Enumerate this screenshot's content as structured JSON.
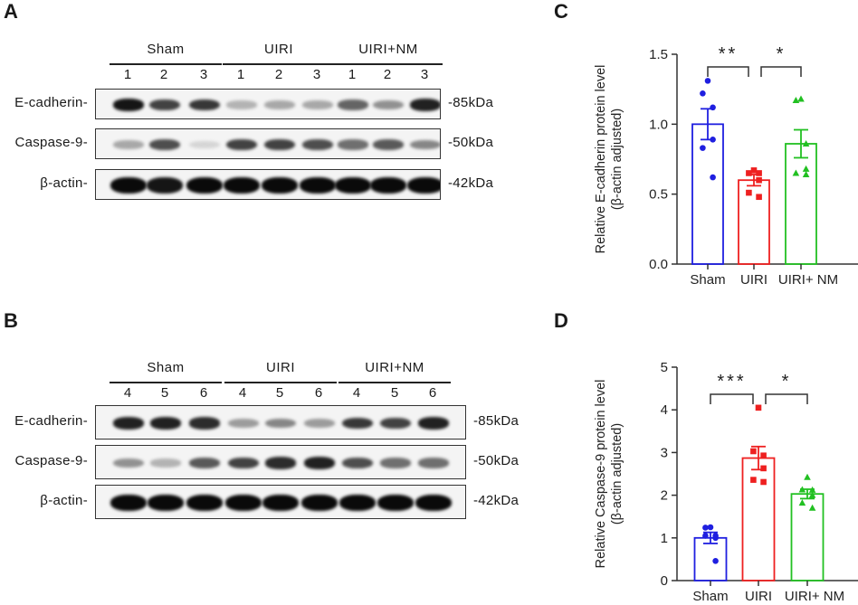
{
  "figure": {
    "panels": {
      "A": {
        "letter": "A",
        "groups": [
          {
            "label": "Sham",
            "lanes": [
              "1",
              "2",
              "3"
            ]
          },
          {
            "label": "UIRI",
            "lanes": [
              "1",
              "2",
              "3"
            ]
          },
          {
            "label": "UIRI+NM",
            "lanes": [
              "1",
              "2",
              "3"
            ]
          }
        ],
        "rows": [
          {
            "label": "E-cadherin-",
            "mw": "-85kDa",
            "intensity": [
              0.95,
              0.75,
              0.8,
              0.25,
              0.3,
              0.3,
              0.6,
              0.4,
              0.9
            ]
          },
          {
            "label": "Caspase-9-",
            "mw": "-50kDa",
            "intensity": [
              0.3,
              0.7,
              0.1,
              0.75,
              0.75,
              0.7,
              0.55,
              0.65,
              0.45
            ]
          },
          {
            "label": "β-actin-",
            "mw": "-42kDa",
            "intensity": [
              1,
              0.95,
              1,
              1,
              1,
              1,
              1,
              1,
              1
            ]
          }
        ]
      },
      "B": {
        "letter": "B",
        "groups": [
          {
            "label": "Sham",
            "lanes": [
              "4",
              "5",
              "6"
            ]
          },
          {
            "label": "UIRI",
            "lanes": [
              "4",
              "5",
              "6"
            ]
          },
          {
            "label": "UIRI+NM",
            "lanes": [
              "4",
              "5",
              "6"
            ]
          }
        ],
        "rows": [
          {
            "label": "E-cadherin-",
            "mw": "-85kDa",
            "intensity": [
              0.9,
              0.9,
              0.85,
              0.35,
              0.45,
              0.35,
              0.8,
              0.75,
              0.9
            ]
          },
          {
            "label": "Caspase-9-",
            "mw": "-50kDa",
            "intensity": [
              0.4,
              0.25,
              0.65,
              0.75,
              0.85,
              0.9,
              0.7,
              0.55,
              0.55
            ]
          },
          {
            "label": "β-actin-",
            "mw": "-42kDa",
            "intensity": [
              1,
              1,
              1,
              1,
              1,
              1,
              1,
              1,
              1
            ]
          }
        ]
      },
      "C": {
        "letter": "C"
      },
      "D": {
        "letter": "D"
      }
    }
  },
  "chart_data": [
    {
      "panel": "C",
      "type": "bar",
      "title": "",
      "xlabel": "",
      "ylabel": "Relative E-cadherin protein level",
      "ylabel2": "(β-actin adjusted)",
      "categories": [
        "Sham",
        "UIRI",
        "UIRI+ NM"
      ],
      "values": [
        1.0,
        0.6,
        0.86
      ],
      "sem": [
        0.11,
        0.04,
        0.1
      ],
      "points": [
        [
          1.31,
          1.22,
          1.12,
          0.89,
          0.83,
          0.62
        ],
        [
          0.67,
          0.65,
          0.65,
          0.6,
          0.51,
          0.48
        ],
        [
          1.18,
          1.17,
          0.86,
          0.68,
          0.65,
          0.64
        ]
      ],
      "colors": [
        "#1f1fe0",
        "#ee2020",
        "#22c022"
      ],
      "markers": [
        "circle",
        "square",
        "triangle"
      ],
      "ylim": [
        0,
        1.5
      ],
      "yticks": [
        "0.0",
        "0.5",
        "1.0",
        "1.5"
      ],
      "significance": [
        {
          "from": "Sham",
          "to": "UIRI",
          "label": "**"
        },
        {
          "from": "UIRI",
          "to": "UIRI+ NM",
          "label": "*"
        }
      ],
      "grid": false,
      "legend": "none"
    },
    {
      "panel": "D",
      "type": "bar",
      "title": "",
      "xlabel": "",
      "ylabel": "Relative Caspase-9 protein level",
      "ylabel2": "(β-actin adjusted)",
      "categories": [
        "Sham",
        "UIRI",
        "UIRI+ NM"
      ],
      "values": [
        1.0,
        2.87,
        2.03
      ],
      "sem": [
        0.13,
        0.27,
        0.11
      ],
      "points": [
        [
          1.25,
          1.24,
          1.05,
          1.0,
          1.05,
          0.46
        ],
        [
          4.05,
          3.03,
          2.93,
          2.63,
          2.36,
          2.31
        ],
        [
          2.42,
          2.13,
          2.12,
          2.0,
          1.82,
          1.7
        ]
      ],
      "colors": [
        "#1f1fe0",
        "#ee2020",
        "#22c022"
      ],
      "markers": [
        "circle",
        "square",
        "triangle"
      ],
      "ylim": [
        0,
        5
      ],
      "yticks": [
        "0",
        "1",
        "2",
        "3",
        "4",
        "5"
      ],
      "significance": [
        {
          "from": "Sham",
          "to": "UIRI",
          "label": "***"
        },
        {
          "from": "UIRI",
          "to": "UIRI+ NM",
          "label": "*"
        }
      ],
      "grid": false,
      "legend": "none"
    }
  ]
}
